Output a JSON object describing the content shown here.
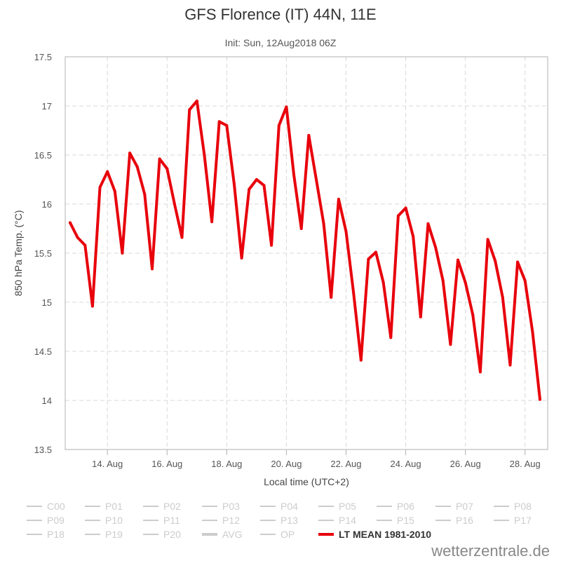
{
  "title": "GFS Florence (IT) 44N, 11E",
  "subtitle": "Init: Sun, 12Aug2018 06Z",
  "credit": "wetterzentrale.de",
  "colors": {
    "series": "#e8000b",
    "inactive": "#cccccc",
    "grid": "#d8d8d8"
  },
  "legend": [
    {
      "label": "C00",
      "active": false
    },
    {
      "label": "P01",
      "active": false
    },
    {
      "label": "P02",
      "active": false
    },
    {
      "label": "P03",
      "active": false
    },
    {
      "label": "P04",
      "active": false
    },
    {
      "label": "P05",
      "active": false
    },
    {
      "label": "P06",
      "active": false
    },
    {
      "label": "P07",
      "active": false
    },
    {
      "label": "P08",
      "active": false
    },
    {
      "label": "P09",
      "active": false
    },
    {
      "label": "P10",
      "active": false
    },
    {
      "label": "P11",
      "active": false
    },
    {
      "label": "P12",
      "active": false
    },
    {
      "label": "P13",
      "active": false
    },
    {
      "label": "P14",
      "active": false
    },
    {
      "label": "P15",
      "active": false
    },
    {
      "label": "P16",
      "active": false
    },
    {
      "label": "P17",
      "active": false
    },
    {
      "label": "P18",
      "active": false
    },
    {
      "label": "P19",
      "active": false
    },
    {
      "label": "P20",
      "active": false
    },
    {
      "label": "AVG",
      "active": false
    },
    {
      "label": "OP",
      "active": false
    },
    {
      "label": "LT MEAN 1981-2010",
      "active": true
    }
  ],
  "chart_data": {
    "type": "line",
    "title": "GFS Florence (IT) 44N, 11E",
    "subtitle": "Init: Sun, 12Aug2018 06Z",
    "xlabel": "Local time (UTC+2)",
    "ylabel": "850 hPa Temp. (°C)",
    "ylim": [
      13.5,
      17.5
    ],
    "y_ticks": [
      "13.5",
      "14",
      "14.5",
      "15",
      "15.5",
      "16",
      "16.5",
      "17",
      "17.5"
    ],
    "x_ticks": [
      "14. Aug",
      "16. Aug",
      "18. Aug",
      "20. Aug",
      "22. Aug",
      "24. Aug",
      "26. Aug",
      "28. Aug"
    ],
    "grid": true,
    "series": [
      {
        "name": "LT MEAN 1981-2010",
        "values": [
          15.81,
          15.66,
          15.58,
          14.96,
          16.17,
          16.33,
          16.13,
          15.5,
          16.52,
          16.38,
          16.1,
          15.34,
          16.46,
          16.36,
          16.0,
          15.66,
          16.96,
          17.05,
          16.5,
          15.82,
          16.84,
          16.8,
          16.2,
          15.45,
          16.15,
          16.25,
          16.19,
          15.58,
          16.8,
          16.99,
          16.3,
          15.75,
          16.7,
          16.25,
          15.8,
          15.05,
          16.05,
          15.72,
          15.1,
          14.41,
          15.44,
          15.51,
          15.2,
          14.64,
          15.88,
          15.96,
          15.67,
          14.85,
          15.8,
          15.56,
          15.22,
          14.57,
          15.43,
          15.2,
          14.87,
          14.29,
          15.64,
          15.42,
          15.05,
          14.36,
          15.41,
          15.22,
          14.7,
          14.01
        ]
      }
    ]
  }
}
